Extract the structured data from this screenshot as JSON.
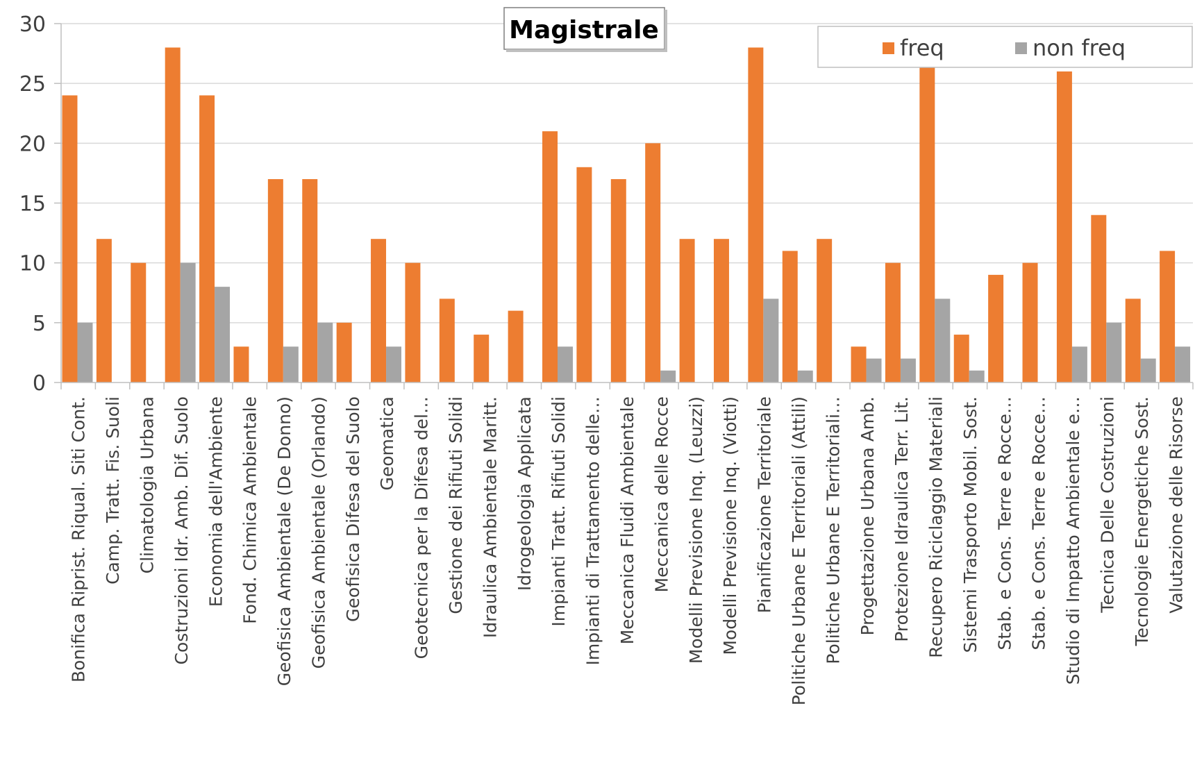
{
  "chart_data": {
    "type": "bar",
    "title": "Magistrale",
    "xlabel": "",
    "ylabel": "",
    "ylim": [
      0,
      30
    ],
    "yticks": [
      0,
      5,
      10,
      15,
      20,
      25,
      30
    ],
    "grid": true,
    "legend_position": "top-right",
    "colors": {
      "freq": "#ED7D31",
      "non_freq": "#A5A5A5",
      "grid": "#D9D9D9",
      "axis": "#BFBFBF"
    },
    "categories": [
      "Bonifica Riprist. Riqual. Siti Cont.",
      "Camp. Tratt. Fis. Suoli",
      "Climatologia Urbana",
      "Costruzioni Idr. Amb. Dif. Suolo",
      "Economia dell'Ambiente",
      "Fond. Chimica Ambientale",
      "Geofisica Ambientale (De Donno)",
      "Geofisica Ambientale (Orlando)",
      "Geofisica Difesa del Suolo",
      "Geomatica",
      "Geotecnica per la Difesa del…",
      "Gestione dei Rifiuti Solidi",
      "Idraulica Ambientale Maritt.",
      "Idrogeologia Applicata",
      "Impianti Tratt. Rifiuti Solidi",
      "Impianti di Trattamento delle…",
      "Meccanica Fluidi Ambientale",
      "Meccanica delle Rocce",
      "Modelli Previsione Inq. (Leuzzi)",
      "Modelli Previsione Inq. (Viotti)",
      "Pianificazione Territoriale",
      "Politiche Urbane E Territoriali (Attili)",
      "Politiche Urbane E Territoriali…",
      "Progettazione Urbana Amb.",
      "Protezione Idraulica Terr. Lit.",
      "Recupero Riciclaggio Materiali",
      "Sistemi Trasporto Mobil. Sost.",
      "Stab. e Cons. Terre e Rocce…",
      "Stab. e Cons. Terre e Rocce…",
      "Studio di Impatto Ambientale e…",
      "Tecnica Delle Costruzioni",
      "Tecnologie Energetiche Sost.",
      "Valutazione delle Risorse"
    ],
    "series": [
      {
        "name": "freq",
        "values": [
          24,
          12,
          10,
          28,
          24,
          3,
          17,
          17,
          5,
          12,
          10,
          7,
          4,
          6,
          21,
          18,
          17,
          20,
          12,
          12,
          28,
          11,
          12,
          3,
          10,
          27,
          4,
          9,
          10,
          26,
          14,
          7,
          11
        ]
      },
      {
        "name": "non freq",
        "values": [
          5,
          0,
          0,
          10,
          8,
          0,
          3,
          5,
          0,
          3,
          0,
          0,
          0,
          0,
          3,
          0,
          0,
          1,
          0,
          0,
          7,
          1,
          0,
          2,
          2,
          7,
          1,
          0,
          0,
          3,
          5,
          2,
          3
        ]
      }
    ]
  }
}
